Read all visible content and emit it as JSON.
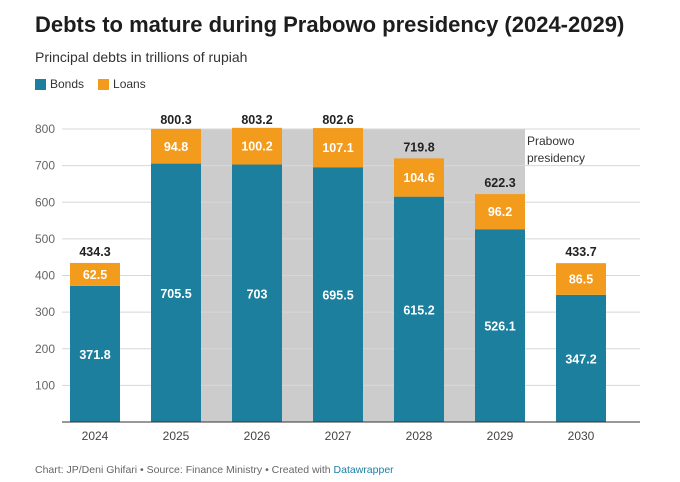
{
  "title": "Debts to mature during Prabowo presidency (2024-2029)",
  "subtitle": "Principal debts in trillions of rupiah",
  "legend": [
    {
      "name": "Bonds",
      "color": "#1c7f9e"
    },
    {
      "name": "Loans",
      "color": "#f29b1d"
    }
  ],
  "annotation": [
    "Prabowo",
    "presidency"
  ],
  "footer": {
    "text": "Chart: JP/Deni Ghifari • Source: Finance Ministry • Created with ",
    "link": "Datawrapper"
  },
  "chart_data": {
    "type": "bar",
    "stacked": true,
    "categories": [
      "2024",
      "2025",
      "2026",
      "2027",
      "2028",
      "2029",
      "2030"
    ],
    "series": [
      {
        "name": "Bonds",
        "color": "#1c7f9e",
        "values": [
          371.8,
          705.5,
          703,
          695.5,
          615.2,
          526.1,
          347.2
        ]
      },
      {
        "name": "Loans",
        "color": "#f29b1d",
        "values": [
          62.5,
          94.8,
          100.2,
          107.1,
          104.6,
          96.2,
          86.5
        ]
      }
    ],
    "totals": [
      "434.3",
      "800.3",
      "803.2",
      "802.6",
      "719.8",
      "622.3",
      "433.7"
    ],
    "bond_labels": [
      "371.8",
      "705.5",
      "703",
      "695.5",
      "615.2",
      "526.1",
      "347.2"
    ],
    "loan_labels": [
      "62.5",
      "94.8",
      "100.2",
      "107.1",
      "104.6",
      "96.2",
      "86.5"
    ],
    "yticks": [
      "100",
      "200",
      "300",
      "400",
      "500",
      "600",
      "700",
      "800"
    ],
    "ylim": [
      0,
      800
    ],
    "highlight_range": [
      "2025",
      "2029"
    ],
    "highlight_color": "#cccccc",
    "grid": true
  }
}
